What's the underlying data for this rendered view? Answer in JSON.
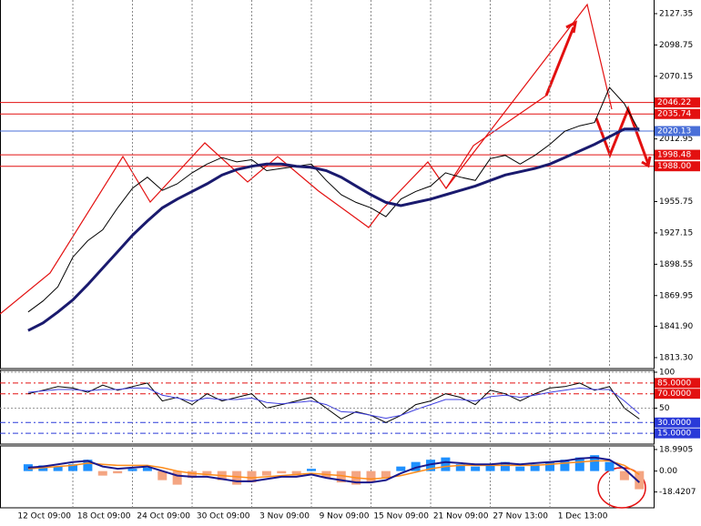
{
  "chart_data": [
    {
      "type": "line",
      "categories": [
        null,
        null,
        null,
        "12 Oct 09:00",
        null,
        null,
        null,
        "18 Oct 09:00",
        null,
        null,
        null,
        "24 Oct 09:00",
        null,
        null,
        null,
        "30 Oct 09:00",
        null,
        null,
        null,
        "3 Nov 09:00",
        null,
        null,
        null,
        "9 Nov 09:00",
        null,
        null,
        null,
        "15 Nov 09:00",
        null,
        null,
        null,
        "21 Nov 09:00",
        null,
        null,
        null,
        "27 Nov 13:00",
        null,
        null,
        null,
        "1 Dec 13:00",
        null,
        null
      ],
      "series": [
        {
          "color": "#000000",
          "width": 1,
          "values": [
            1855,
            1865,
            1878,
            1905,
            1920,
            1930,
            1950,
            1968,
            1978,
            1966,
            1972,
            1982,
            1990,
            1996,
            1992,
            1994,
            1984,
            1986,
            1988,
            1990,
            1975,
            1962,
            1955,
            1950,
            1942,
            1958,
            1965,
            1970,
            1982,
            1978,
            1975,
            1995,
            1998,
            1990,
            1998,
            2008,
            2020,
            2025,
            2028,
            2060,
            2045,
            2020
          ]
        },
        {
          "color": "#1a1a6e",
          "width": 3,
          "values": [
            1838,
            1845,
            1855,
            1866,
            1880,
            1895,
            1910,
            1925,
            1938,
            1950,
            1958,
            1965,
            1972,
            1980,
            1985,
            1988,
            1990,
            1990,
            1988,
            1987,
            1984,
            1978,
            1970,
            1962,
            1955,
            1952,
            1955,
            1958,
            1962,
            1966,
            1970,
            1975,
            1980,
            1983,
            1986,
            1990,
            1996,
            2002,
            2008,
            2015,
            2022,
            2022
          ]
        }
      ],
      "ylim": [
        1803.3,
        2139.8
      ],
      "yticks": [
        {
          "value": 1813.3,
          "label": "1813.30"
        },
        {
          "value": 1841.9,
          "label": "1841.90"
        },
        1869.95,
        1898.55,
        1927.15,
        1955.75,
        2012.95,
        2070.15,
        2098.75,
        2127.35
      ],
      "levels": [
        {
          "value": 2046.22,
          "label": "2046.22",
          "color": "#e31010"
        },
        {
          "value": 2035.74,
          "label": "2035.74",
          "color": "#e31010"
        },
        {
          "value": 2020.13,
          "label": "2020.13",
          "color": "#4a6fd8"
        },
        {
          "value": 1998.48,
          "label": "1998.48",
          "color": "#e31010"
        },
        {
          "value": 1988.0,
          "label": "1988.00",
          "color": "#e31010"
        }
      ],
      "vgrid": true
    },
    {
      "type": "line",
      "series": [
        {
          "color": "#000000",
          "width": 1,
          "values": [
            70,
            75,
            80,
            78,
            72,
            82,
            75,
            80,
            85,
            60,
            65,
            55,
            70,
            60,
            65,
            70,
            50,
            55,
            60,
            65,
            50,
            35,
            45,
            40,
            30,
            40,
            55,
            60,
            70,
            65,
            55,
            75,
            70,
            60,
            70,
            78,
            80,
            85,
            75,
            80,
            50,
            35
          ]
        },
        {
          "color": "#4040e0",
          "width": 1,
          "values": [
            72,
            74,
            76,
            76,
            74,
            76,
            76,
            78,
            78,
            68,
            64,
            60,
            64,
            62,
            62,
            64,
            58,
            56,
            58,
            60,
            55,
            45,
            44,
            40,
            36,
            40,
            48,
            55,
            62,
            62,
            60,
            66,
            68,
            65,
            68,
            72,
            75,
            78,
            76,
            76,
            60,
            42
          ]
        }
      ],
      "ylim": [
        0,
        100
      ],
      "yticks": [
        100,
        50
      ],
      "levels": [
        {
          "value": 85,
          "label": "85.0000",
          "color": "#e31010"
        },
        {
          "value": 70,
          "label": "70.0000",
          "color": "#e31010"
        },
        {
          "value": 30,
          "label": "30.0000",
          "color": "#2a3ad8"
        },
        {
          "value": 15,
          "label": "15.0000",
          "color": "#2a3ad8"
        }
      ]
    },
    {
      "type": "bar",
      "values": [
        6,
        5,
        4,
        6,
        10,
        -4,
        -2,
        2,
        3,
        -8,
        -12,
        -6,
        -4,
        -8,
        -12,
        -10,
        -4,
        -2,
        -4,
        2,
        -6,
        -10,
        -12,
        -10,
        -6,
        4,
        8,
        10,
        12,
        6,
        4,
        6,
        8,
        4,
        6,
        8,
        10,
        12,
        14,
        8,
        -8,
        -16
      ],
      "pos_color": "#1e90ff",
      "neg_color": "#f4a582",
      "series": [
        {
          "color": "#ff8c1a",
          "width": 1.5,
          "values": [
            2,
            3,
            4,
            5,
            7,
            6,
            5,
            5,
            5,
            3,
            0,
            -2,
            -3,
            -4,
            -5,
            -6,
            -5,
            -4,
            -3,
            -2,
            -3,
            -4,
            -6,
            -7,
            -6,
            -4,
            -1,
            2,
            4,
            5,
            5,
            5,
            5,
            5,
            5,
            6,
            7,
            8,
            9,
            9,
            5,
            -3
          ]
        },
        {
          "color": "#1a1a8e",
          "width": 2,
          "values": [
            3,
            4,
            6,
            8,
            9,
            4,
            2,
            3,
            4,
            0,
            -4,
            -5,
            -5,
            -7,
            -9,
            -9,
            -7,
            -5,
            -5,
            -3,
            -6,
            -8,
            -10,
            -10,
            -8,
            -2,
            3,
            6,
            8,
            7,
            6,
            6,
            7,
            6,
            7,
            8,
            9,
            11,
            12,
            10,
            2,
            -10
          ]
        }
      ],
      "ylim": [
        -32.37,
        22.16
      ],
      "yticks": [
        18.9905,
        {
          "value": 0,
          "label": "0.00"
        },
        -18.4207
      ]
    }
  ]
}
